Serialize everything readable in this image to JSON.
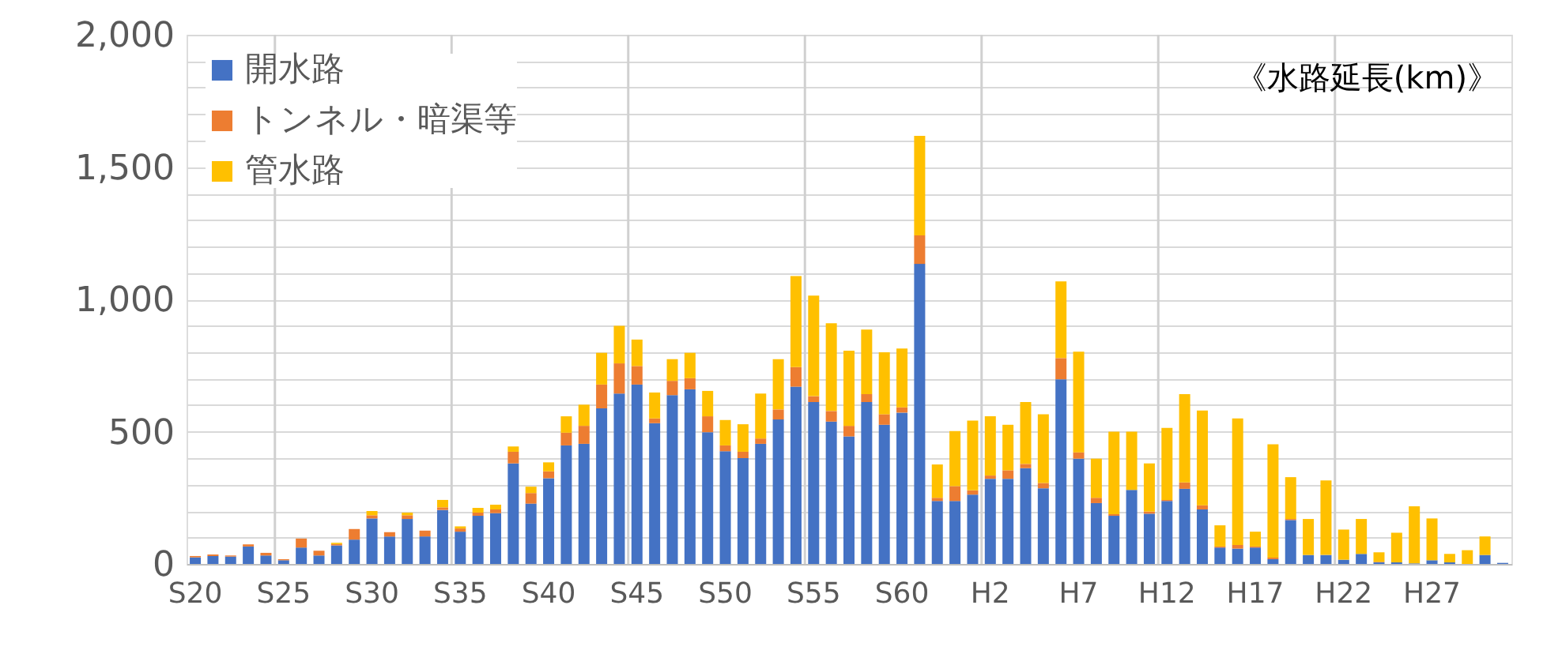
{
  "chart_data": {
    "type": "bar",
    "stacked": true,
    "categories": [
      "S20",
      null,
      null,
      null,
      null,
      "S25",
      null,
      null,
      null,
      null,
      "S30",
      null,
      null,
      null,
      null,
      "S35",
      null,
      null,
      null,
      null,
      "S40",
      null,
      null,
      null,
      null,
      "S45",
      null,
      null,
      null,
      null,
      "S50",
      null,
      null,
      null,
      null,
      "S55",
      null,
      null,
      null,
      null,
      "S60",
      null,
      null,
      null,
      null,
      "H2",
      null,
      null,
      null,
      null,
      "H7",
      null,
      null,
      null,
      null,
      "H12",
      null,
      null,
      null,
      null,
      "H17",
      null,
      null,
      null,
      null,
      "H22",
      null,
      null,
      null,
      null,
      "H27",
      null,
      null,
      null,
      null
    ],
    "series": [
      {
        "name": "開水路",
        "color": "#4472c4",
        "values": [
          25,
          30,
          28,
          66,
          32,
          14,
          62,
          32,
          70,
          92,
          172,
          104,
          170,
          104,
          204,
          122,
          182,
          192,
          380,
          228,
          324,
          448,
          454,
          588,
          644,
          678,
          532,
          638,
          660,
          498,
          426,
          400,
          454,
          546,
          670,
          612,
          538,
          482,
          612,
          526,
          572,
          1134,
          238,
          238,
          262,
          322,
          322,
          362,
          286,
          698,
          398,
          230,
          182,
          280,
          190,
          238,
          284,
          206,
          62,
          58,
          62,
          18,
          166,
          34,
          34,
          16,
          38,
          6,
          6,
          2,
          14,
          6,
          0,
          34,
          4
        ]
      },
      {
        "name": "トンネル・暗渠等",
        "color": "#ed7d31",
        "values": [
          5,
          6,
          4,
          8,
          10,
          4,
          34,
          18,
          5,
          40,
          12,
          16,
          14,
          22,
          10,
          12,
          12,
          14,
          44,
          40,
          26,
          48,
          68,
          90,
          114,
          70,
          18,
          54,
          42,
          60,
          22,
          24,
          20,
          38,
          74,
          22,
          40,
          40,
          30,
          40,
          20,
          108,
          12,
          56,
          16,
          12,
          32,
          16,
          20,
          80,
          24,
          20,
          6,
          0,
          8,
          4,
          24,
          16,
          4,
          14,
          4,
          6,
          4,
          0,
          0,
          0,
          0,
          2,
          0,
          0,
          0,
          0,
          0,
          0,
          0
        ]
      },
      {
        "name": "管水路",
        "color": "#ffc000",
        "values": [
          0,
          0,
          0,
          0,
          0,
          0,
          0,
          0,
          5,
          0,
          16,
          0,
          10,
          0,
          28,
          8,
          18,
          18,
          20,
          24,
          34,
          62,
          80,
          120,
          142,
          100,
          98,
          82,
          96,
          96,
          96,
          104,
          170,
          190,
          344,
          380,
          332,
          284,
          244,
          234,
          222,
          376,
          126,
          208,
          264,
          224,
          172,
          234,
          260,
          290,
          380,
          148,
          312,
          220,
          182,
          272,
          334,
          358,
          80,
          478,
          56,
          428,
          158,
          136,
          282,
          114,
          132,
          36,
          112,
          216,
          158,
          32,
          52,
          70,
          0
        ]
      }
    ],
    "ylim": [
      0,
      2000
    ],
    "yticks": [
      {
        "value": 0,
        "label": "0"
      },
      {
        "value": 100,
        "label": null
      },
      {
        "value": 200,
        "label": null
      },
      {
        "value": 300,
        "label": null
      },
      {
        "value": 400,
        "label": null
      },
      {
        "value": 500,
        "label": "500"
      },
      {
        "value": 600,
        "label": null
      },
      {
        "value": 700,
        "label": null
      },
      {
        "value": 800,
        "label": null
      },
      {
        "value": 900,
        "label": null
      },
      {
        "value": 1000,
        "label": "1,000"
      },
      {
        "value": 1100,
        "label": null
      },
      {
        "value": 1200,
        "label": null
      },
      {
        "value": 1300,
        "label": null
      },
      {
        "value": 1400,
        "label": null
      },
      {
        "value": 1500,
        "label": "1,500"
      },
      {
        "value": 1600,
        "label": null
      },
      {
        "value": 1700,
        "label": null
      },
      {
        "value": 1800,
        "label": null
      },
      {
        "value": 1900,
        "label": null
      },
      {
        "value": 2000,
        "label": "2,000"
      }
    ],
    "grid": true,
    "legend": "top left",
    "annotations": [
      "《水路延長(km)》"
    ]
  }
}
